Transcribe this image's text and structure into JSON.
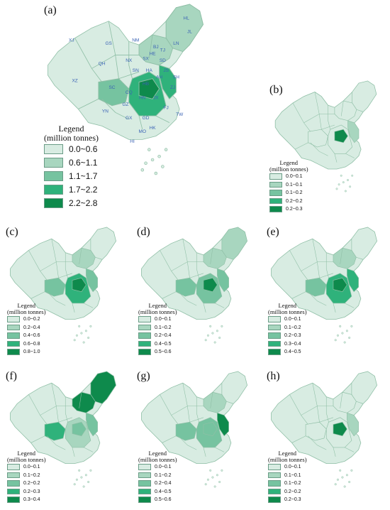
{
  "colors": {
    "c0": "#d8ece2",
    "c1": "#a8d6bf",
    "c2": "#76c3a0",
    "c3": "#2fb27b",
    "c4": "#0e8a4c",
    "border": "#8fbfa6",
    "label_blue": "#3b63b5"
  },
  "panels": [
    {
      "label": "(a)",
      "legend_title_1": "Legend",
      "legend_title_2": "(million tonnes)",
      "legend_items": [
        "0.0~0.6",
        "0.6~1.1",
        "1.1~1.7",
        "1.7~2.2",
        "2.2~2.8"
      ],
      "province_labels": [
        "HL",
        "JL",
        "LN",
        "BJ",
        "TJ",
        "HE",
        "NM",
        "SX",
        "SD",
        "XJ",
        "GS",
        "NX",
        "QH",
        "SN",
        "HA",
        "JS",
        "SH",
        "AH",
        "XZ",
        "SC",
        "CQ",
        "HB",
        "ZJ",
        "HN",
        "JX",
        "GZ",
        "FJ",
        "YN",
        "GX",
        "GD",
        "TW",
        "HK",
        "MO",
        "HI"
      ],
      "shading": {
        "hotspot": 4,
        "east": 3,
        "center": 3,
        "sw": 2,
        "northeast": 1,
        "north": 1
      }
    },
    {
      "label": "(b)",
      "legend_title_1": "Legend",
      "legend_title_2": "(million tonnes)",
      "legend_items": [
        "0.0~0.1",
        "0.1~0.1",
        "0.1~0.2",
        "0.2~0.2",
        "0.2~0.3"
      ],
      "shading": {
        "hotspot": 4,
        "east": 1,
        "center": 0,
        "sw": 0,
        "northeast": 0,
        "north": 0
      }
    },
    {
      "label": "(c)",
      "legend_title_1": "Legend",
      "legend_title_2": "(million tonnes)",
      "legend_items": [
        "0.0~0.2",
        "0.2~0.4",
        "0.4~0.6",
        "0.6~0.8",
        "0.8~1.0"
      ],
      "shading": {
        "hotspot": 4,
        "east": 2,
        "center": 3,
        "sw": 2,
        "northeast": 0,
        "north": 1
      }
    },
    {
      "label": "(d)",
      "legend_title_1": "Legend",
      "legend_title_2": "(million tonnes)",
      "legend_items": [
        "0.0~0.1",
        "0.1~0.2",
        "0.2~0.4",
        "0.4~0.5",
        "0.5~0.6"
      ],
      "shading": {
        "hotspot": 4,
        "east": 2,
        "center": 2,
        "sw": 2,
        "northeast": 1,
        "north": 1
      }
    },
    {
      "label": "(e)",
      "legend_title_1": "Legend",
      "legend_title_2": "(million tonnes)",
      "legend_items": [
        "0.0~0.1",
        "0.1~0.2",
        "0.2~0.3",
        "0.3~0.4",
        "0.4~0.5"
      ],
      "shading": {
        "hotspot": 4,
        "east": 3,
        "center": 3,
        "sw": 2,
        "northeast": 0,
        "north": 1
      }
    },
    {
      "label": "(f)",
      "legend_title_1": "Legend",
      "legend_title_2": "(million tonnes)",
      "legend_items": [
        "0.0~0.1",
        "0.1~0.2",
        "0.2~0.2",
        "0.2~0.3",
        "0.3~0.4"
      ],
      "shading": {
        "hotspot": 2,
        "east": 2,
        "center": 1,
        "sw": 3,
        "northeast": 4,
        "north": 4
      }
    },
    {
      "label": "(g)",
      "legend_title_1": "Legend",
      "legend_title_2": "(million tonnes)",
      "legend_items": [
        "0.0~0.1",
        "0.1~0.2",
        "0.2~0.4",
        "0.4~0.5",
        "0.5~0.6"
      ],
      "shading": {
        "hotspot": 2,
        "east": 4,
        "center": 2,
        "sw": 2,
        "northeast": 0,
        "north": 1
      }
    },
    {
      "label": "(h)",
      "legend_title_1": "Legend",
      "legend_title_2": "(million tonnes)",
      "legend_items": [
        "0.0~0.1",
        "0.1~0.1",
        "0.1~0.2",
        "0.2~0.2",
        "0.2~0.3"
      ],
      "shading": {
        "hotspot": 4,
        "east": 1,
        "center": 0,
        "sw": 0,
        "northeast": 0,
        "north": 0
      }
    }
  ]
}
